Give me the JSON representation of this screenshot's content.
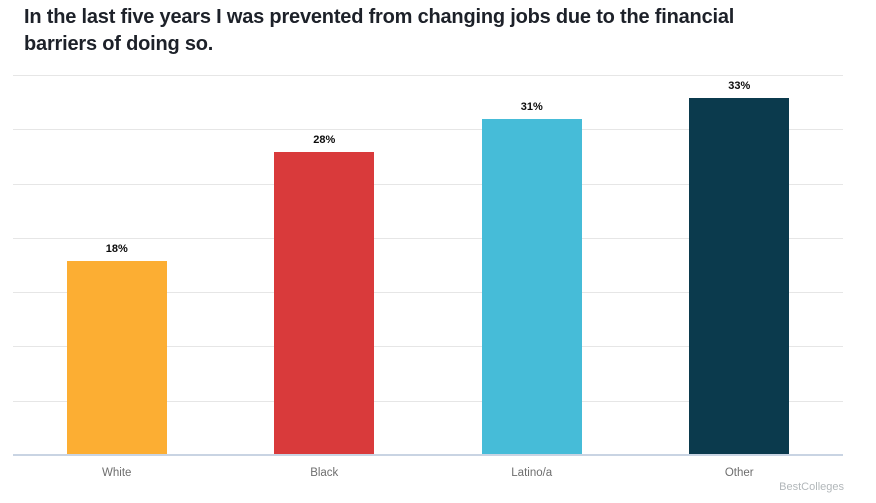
{
  "header": {
    "title": "In the last five years I was prevented from changing jobs due to the financial barriers of doing so."
  },
  "attribution": "BestColleges",
  "colors": {
    "background": "#FFFFFF",
    "title_text": "#1D2129",
    "value_label_text": "#0B0B0B",
    "axis_label_text": "#6E6E6E",
    "gridline": "#E6E6E6",
    "baseline": "#C9D4E3",
    "attribution_text": "#B2B7BA"
  },
  "chart_data": {
    "type": "bar",
    "title": "In the last five years I was prevented from changing jobs due to the financial barriers of doing so.",
    "categories": [
      "White",
      "Black",
      "Latino/a",
      "Other"
    ],
    "values": [
      18,
      28,
      31,
      33
    ],
    "value_labels": [
      "18%",
      "28%",
      "31%",
      "33%"
    ],
    "bar_colors": [
      "#FCAE33",
      "#D93A3B",
      "#46BCD8",
      "#0B3A4D"
    ],
    "xlabel": "",
    "ylabel": "",
    "ylim": [
      0,
      35
    ],
    "grid_interval": 5,
    "grid": true,
    "legend": false,
    "y_tick_labels_visible": false,
    "source_label": "BestColleges"
  }
}
